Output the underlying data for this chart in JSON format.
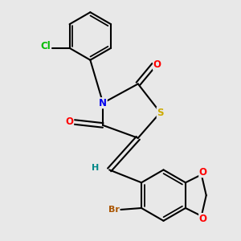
{
  "bg_color": "#e8e8e8",
  "bond_color": "#000000",
  "bond_width": 1.5,
  "atom_colors": {
    "N": "#0000ee",
    "O": "#ff0000",
    "S": "#ccaa00",
    "Cl": "#00bb00",
    "Br": "#aa5500",
    "H": "#008888",
    "C": "#000000"
  },
  "font_size": 8.5
}
